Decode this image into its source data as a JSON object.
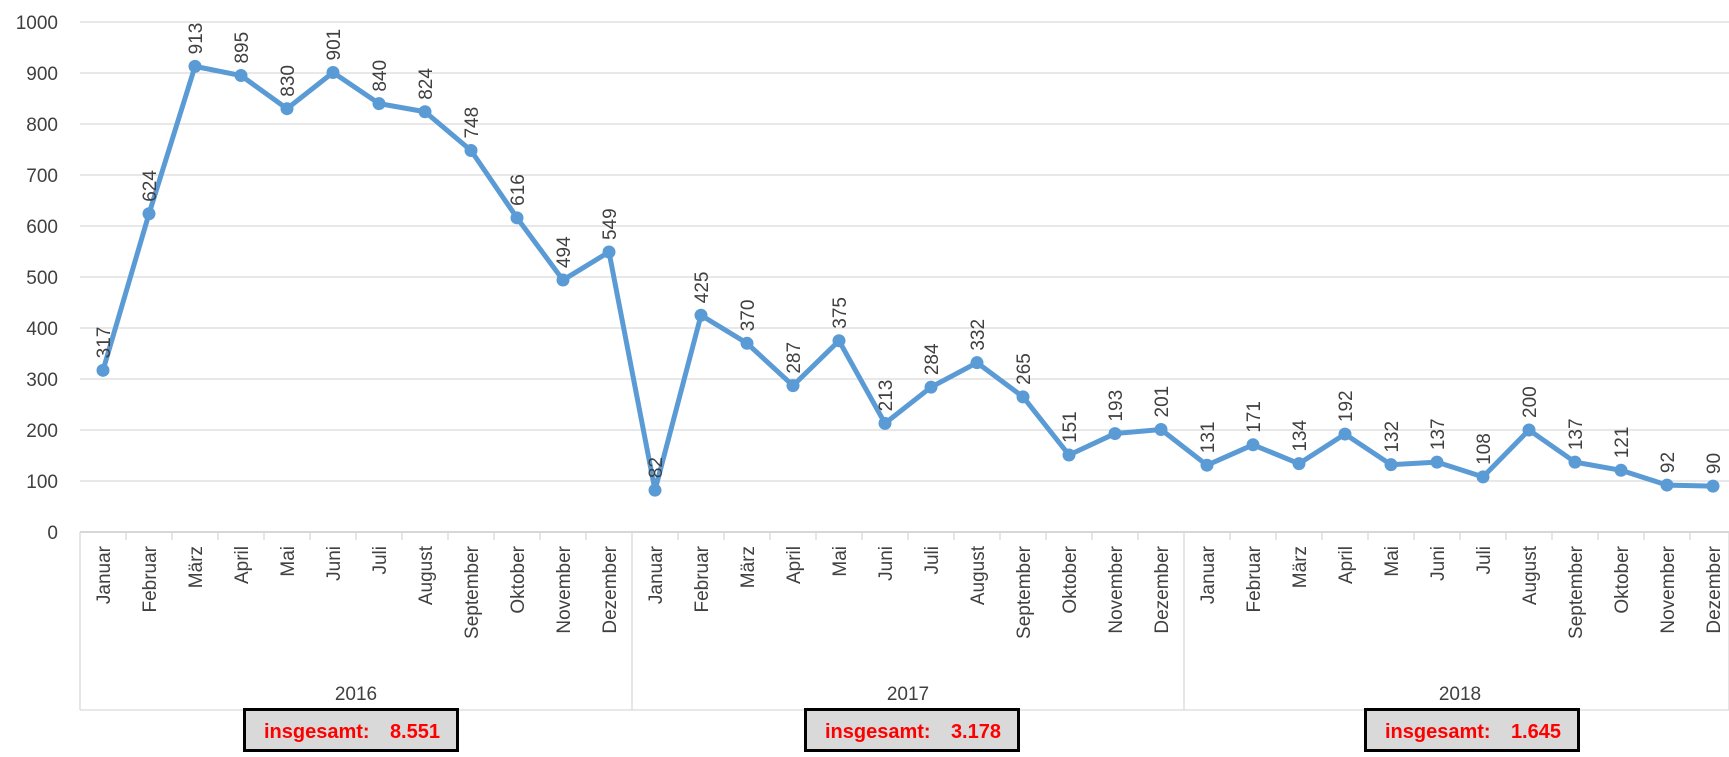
{
  "chart_data": {
    "type": "line",
    "title": "",
    "xlabel": "",
    "ylabel": "",
    "ylim": [
      0,
      1000
    ],
    "yticks": [
      0,
      100,
      200,
      300,
      400,
      500,
      600,
      700,
      800,
      900,
      1000
    ],
    "grid": true,
    "legend": "none",
    "groups": [
      {
        "year": "2016",
        "months": [
          "Januar",
          "Februar",
          "März",
          "April",
          "Mai",
          "Juni",
          "Juli",
          "August",
          "September",
          "Oktober",
          "November",
          "Dezember"
        ]
      },
      {
        "year": "2017",
        "months": [
          "Januar",
          "Februar",
          "März",
          "April",
          "Mai",
          "Juni",
          "Juli",
          "August",
          "September",
          "Oktober",
          "November",
          "Dezember"
        ]
      },
      {
        "year": "2018",
        "months": [
          "Januar",
          "Februar",
          "März",
          "April",
          "Mai",
          "Juni",
          "Juli",
          "August",
          "September",
          "Oktober",
          "November",
          "Dezember"
        ]
      }
    ],
    "series": [
      {
        "values": [
          317,
          624,
          913,
          895,
          830,
          901,
          840,
          824,
          748,
          616,
          494,
          549,
          82,
          425,
          370,
          287,
          375,
          213,
          284,
          332,
          265,
          151,
          193,
          201,
          131,
          171,
          134,
          192,
          132,
          137,
          108,
          200,
          137,
          121,
          92,
          90
        ]
      }
    ],
    "line_color": "#5b9bd5"
  },
  "totals": [
    {
      "label": "insgesamt:",
      "value": "8.551"
    },
    {
      "label": "insgesamt:",
      "value": "3.178"
    },
    {
      "label": "insgesamt:",
      "value": "1.645"
    }
  ],
  "colors": {
    "line": "#5b9bd5",
    "grid": "#d9d9d9",
    "total_text": "#ff0000",
    "total_bg": "#d9d9d9"
  }
}
